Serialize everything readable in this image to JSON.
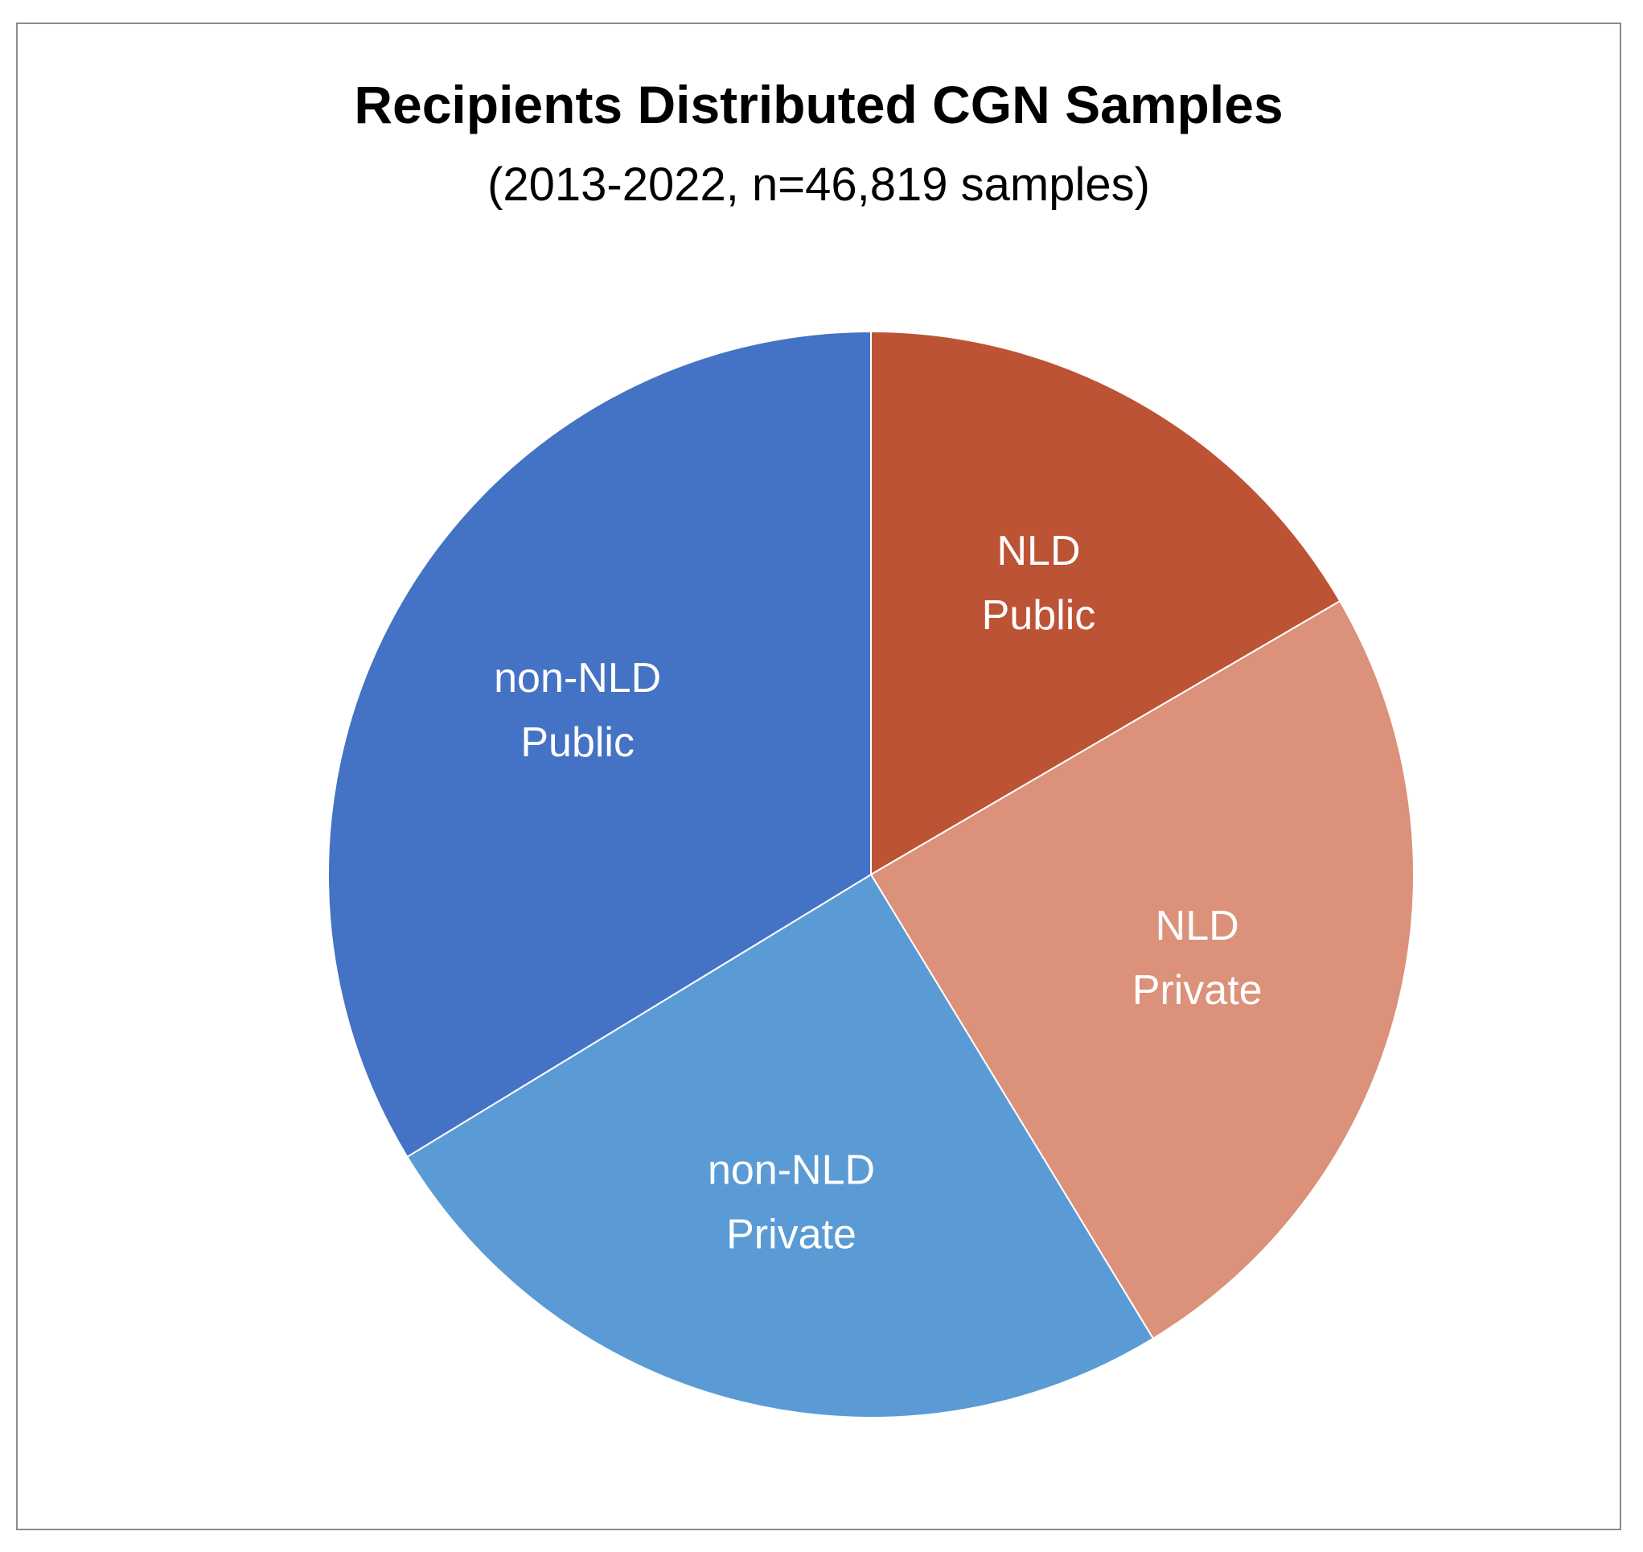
{
  "chart_data": {
    "type": "pie",
    "title": "Recipients Distributed CGN Samples",
    "subtitle": "(2013-2022, n=46,819 samples)",
    "start_angle_deg": 0,
    "direction": "clockwise",
    "slices": [
      {
        "label_lines": [
          "NLD",
          "Public"
        ],
        "percent": 16.6,
        "color": "#BC5335"
      },
      {
        "label_lines": [
          "NLD",
          "Private"
        ],
        "percent": 24.7,
        "color": "#DB917A"
      },
      {
        "label_lines": [
          "non-NLD",
          "Private"
        ],
        "percent": 25.0,
        "color": "#5B9BD5"
      },
      {
        "label_lines": [
          "non-NLD",
          "Public"
        ],
        "percent": 33.7,
        "color": "#4472C4"
      }
    ],
    "legend": "none",
    "data_labels": "category names inside slices"
  }
}
